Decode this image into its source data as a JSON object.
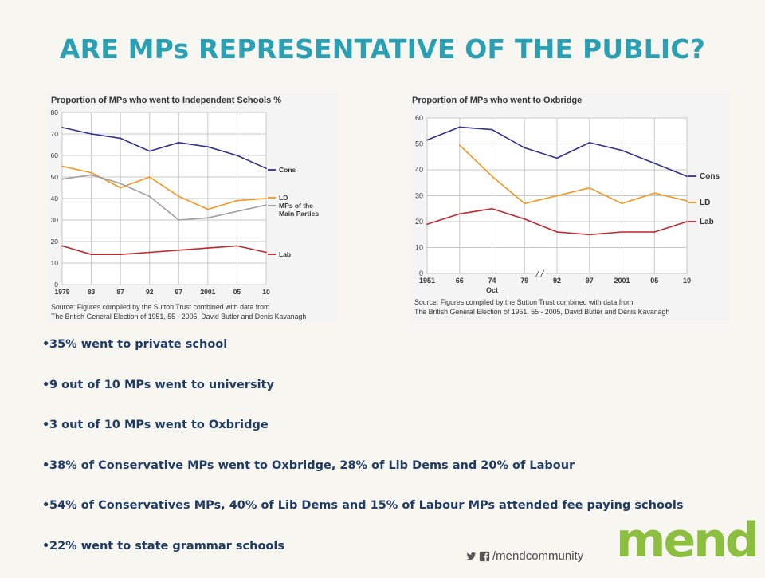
{
  "slide": {
    "title": "ARE MPs REPRESENTATIVE OF THE PUBLIC?",
    "bullets": [
      "35% went to private school",
      "9 out of 10 MPs went to university",
      "3 out of 10 MPs went to Oxbridge",
      "38% of Conservative MPs went to Oxbridge, 28% of Lib Dems and 20% of Labour",
      "54% of Conservatives MPs, 40% of Lib Dems and 15% of Labour MPs attended fee paying schools",
      "22% went to state grammar schools"
    ],
    "social_handle": "/mendcommunity",
    "logo_text": "mend"
  },
  "chart_data": [
    {
      "type": "line",
      "title": "Proportion of MPs who went to Independent Schools %",
      "categories": [
        "1979",
        "83",
        "87",
        "92",
        "97",
        "2001",
        "05",
        "10"
      ],
      "ylim": [
        0,
        80
      ],
      "yticks": [
        "0",
        "10",
        "20",
        "30",
        "40",
        "50",
        "60",
        "70",
        "80"
      ],
      "grid": true,
      "series": [
        {
          "name": "Cons",
          "color": "#2e3192",
          "values": [
            73,
            70,
            68,
            62,
            66,
            64,
            60,
            54
          ]
        },
        {
          "name": "LD",
          "color": "#f7941d",
          "values": [
            55,
            52,
            45,
            50,
            41,
            35,
            39,
            40
          ]
        },
        {
          "name": "MPs of the Main Parties",
          "color": "#a0a0a0",
          "values": [
            49,
            51,
            47,
            41,
            30,
            31,
            34,
            37
          ]
        },
        {
          "name": "Lab",
          "color": "#c1272d",
          "values": [
            18,
            14,
            14,
            15,
            16,
            17,
            18,
            15
          ]
        }
      ],
      "source": [
        "Source:  Figures compiled by the Sutton Trust combined with data from",
        "The British General Election of 1951, 55 - 2005, David Butler and Denis Kavanagh"
      ]
    },
    {
      "type": "line",
      "title": "Proportion of MPs who went to Oxbridge",
      "categories": [
        "1951",
        "66",
        "74",
        "79",
        "92",
        "97",
        "2001",
        "05",
        "10"
      ],
      "category_sublabels": [
        "",
        "",
        "Oct",
        "",
        "",
        "",
        "",
        "",
        ""
      ],
      "axis_break_after": "79",
      "ylim": [
        0,
        60
      ],
      "yticks": [
        "0",
        "10",
        "20",
        "30",
        "40",
        "50",
        "60"
      ],
      "grid": true,
      "series": [
        {
          "name": "Cons",
          "color": "#2e3192",
          "values": [
            51.5,
            56.5,
            55.5,
            48.5,
            44.5,
            50.5,
            47.5,
            42.5,
            37.5
          ]
        },
        {
          "name": "LD",
          "color": "#f7941d",
          "values": [
            null,
            49.5,
            37.5,
            27,
            30,
            33,
            27,
            31,
            28
          ]
        },
        {
          "name": "Lab",
          "color": "#c1272d",
          "values": [
            19,
            23,
            25,
            21,
            16,
            15,
            16,
            16,
            20
          ]
        }
      ],
      "source": [
        "Source:  Figures compiled by the Sutton Trust combined with data from",
        "The British General Election of 1951, 55 - 2005, David Butler and Denis Kavanagh"
      ]
    }
  ]
}
